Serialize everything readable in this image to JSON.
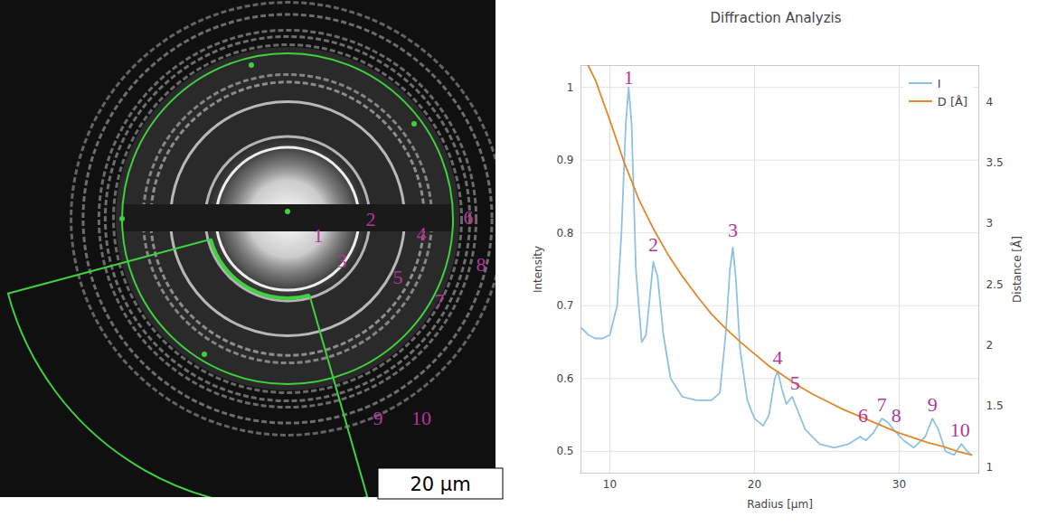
{
  "chart_data": {
    "type": "line",
    "title": "Diffraction Analyzis",
    "x_label": "Radius [µm]",
    "y_label": "Intensity",
    "y2_label": "Distance [Å]",
    "xlim": [
      8,
      35.5
    ],
    "xticks": [
      10,
      20,
      30
    ],
    "ylim": [
      0.47,
      1.03
    ],
    "yticks": [
      0.5,
      0.6,
      0.7,
      0.8,
      0.9,
      1
    ],
    "y2lim": [
      0.95,
      4.3
    ],
    "y2ticks": [
      1,
      1.5,
      2,
      2.5,
      3,
      3.5,
      4
    ],
    "grid": true,
    "legend": "top-right",
    "series": [
      {
        "name": "I",
        "color": "#8fc1e3",
        "axis": "y",
        "x": [
          8,
          8.5,
          9,
          9.5,
          10,
          10.5,
          10.8,
          11.1,
          11.3,
          11.5,
          11.8,
          12.2,
          12.5,
          12.8,
          13.0,
          13.3,
          13.7,
          14.2,
          15,
          16,
          17,
          17.6,
          18.0,
          18.3,
          18.5,
          18.7,
          19.0,
          19.5,
          20,
          20.6,
          21.0,
          21.4,
          21.6,
          21.9,
          22.2,
          22.6,
          22.9,
          23.5,
          24.5,
          25.5,
          26.5,
          27.3,
          27.7,
          28.2,
          28.8,
          29.2,
          29.6,
          30.3,
          31,
          31.8,
          32.3,
          32.7,
          33.2,
          33.8,
          34.3,
          34.7,
          35
        ],
        "values": [
          0.67,
          0.66,
          0.655,
          0.655,
          0.66,
          0.7,
          0.8,
          0.95,
          1.0,
          0.95,
          0.75,
          0.65,
          0.66,
          0.72,
          0.76,
          0.74,
          0.66,
          0.6,
          0.575,
          0.57,
          0.57,
          0.58,
          0.66,
          0.75,
          0.78,
          0.74,
          0.64,
          0.57,
          0.545,
          0.535,
          0.55,
          0.6,
          0.61,
          0.585,
          0.565,
          0.575,
          0.56,
          0.53,
          0.51,
          0.505,
          0.51,
          0.52,
          0.515,
          0.525,
          0.545,
          0.54,
          0.53,
          0.515,
          0.505,
          0.52,
          0.545,
          0.53,
          0.5,
          0.495,
          0.51,
          0.5,
          0.495
        ]
      },
      {
        "name": "D [Å]",
        "color": "#e0892c",
        "axis": "y2",
        "x": [
          8.5,
          9,
          10,
          11,
          12,
          13,
          14,
          15,
          16,
          17,
          18,
          19,
          20,
          21,
          22,
          23,
          24,
          25,
          26,
          27,
          28,
          29,
          30,
          31,
          32,
          33,
          34,
          35
        ],
        "values": [
          4.3,
          4.18,
          3.85,
          3.5,
          3.2,
          2.96,
          2.75,
          2.57,
          2.41,
          2.26,
          2.14,
          2.03,
          1.93,
          1.83,
          1.75,
          1.67,
          1.6,
          1.54,
          1.48,
          1.43,
          1.38,
          1.33,
          1.28,
          1.24,
          1.2,
          1.17,
          1.13,
          1.1
        ]
      }
    ],
    "annotations": [
      {
        "text": "1",
        "x": 11.3,
        "y": 1.0
      },
      {
        "text": "2",
        "x": 13.0,
        "y": 0.77
      },
      {
        "text": "3",
        "x": 18.5,
        "y": 0.79
      },
      {
        "text": "4",
        "x": 21.6,
        "y": 0.615
      },
      {
        "text": "5",
        "x": 22.8,
        "y": 0.58
      },
      {
        "text": "6",
        "x": 27.5,
        "y": 0.535
      },
      {
        "text": "7",
        "x": 28.8,
        "y": 0.55
      },
      {
        "text": "8",
        "x": 29.8,
        "y": 0.535
      },
      {
        "text": "9",
        "x": 32.3,
        "y": 0.55
      },
      {
        "text": "10",
        "x": 34.2,
        "y": 0.515
      }
    ]
  },
  "image": {
    "ring_labels": [
      "1",
      "2",
      "3",
      "4",
      "5",
      "6",
      "7",
      "8",
      "9",
      "10"
    ],
    "scale_bar": "20 µm"
  }
}
